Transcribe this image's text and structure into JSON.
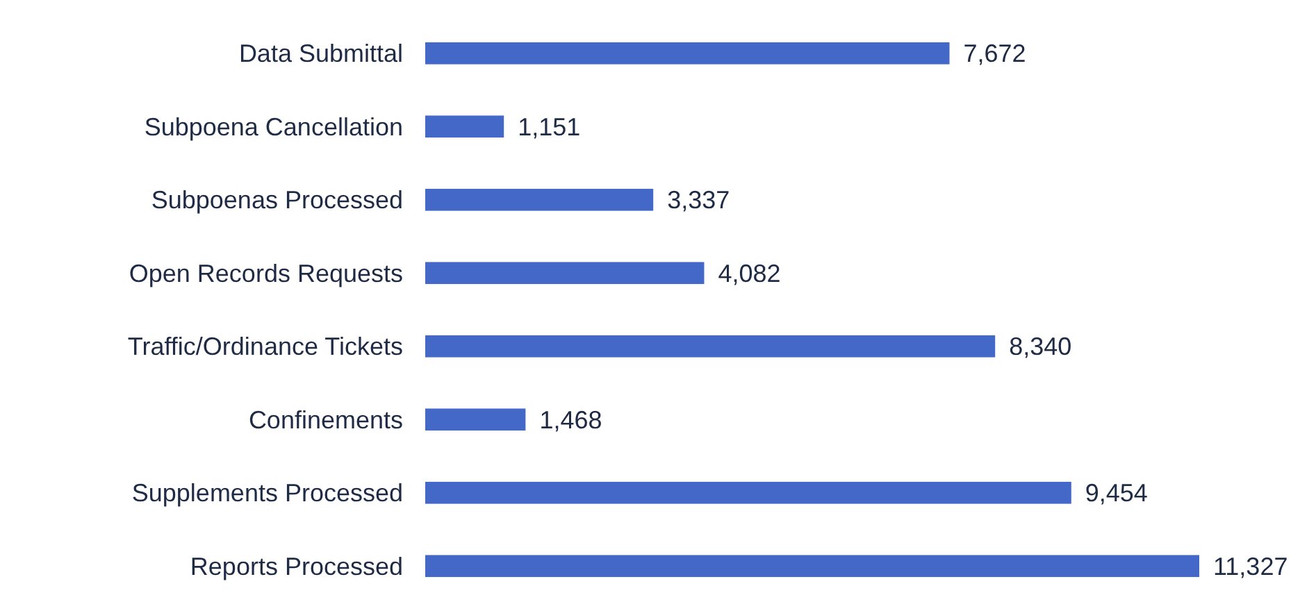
{
  "chart_data": {
    "type": "bar",
    "orientation": "horizontal",
    "categories": [
      "Data Submittal",
      "Subpoena Cancellation",
      "Subpoenas Processed",
      "Open Records Requests",
      "Traffic/Ordinance Tickets",
      "Confinements",
      "Supplements Processed",
      "Reports Processed"
    ],
    "values": [
      7672,
      1151,
      3337,
      4082,
      8340,
      1468,
      9454,
      11327
    ],
    "color": "#4468c8",
    "value_labels": [
      "7,672",
      "1,151",
      "3,337",
      "4,082",
      "8,340",
      "1,468",
      "9,454",
      "11,327"
    ]
  }
}
